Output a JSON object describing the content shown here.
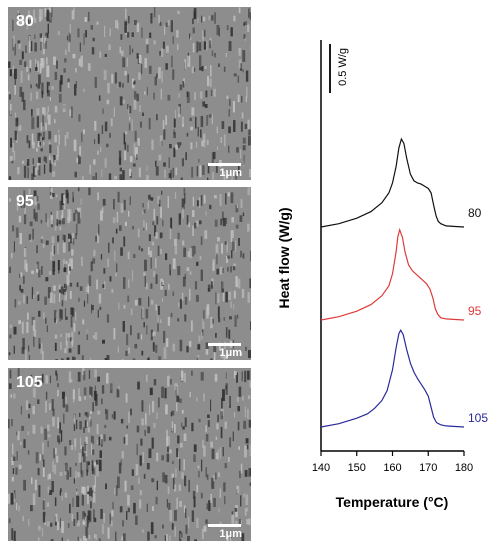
{
  "sem_panels": [
    {
      "label": "80",
      "scale": "1μm"
    },
    {
      "label": "95",
      "scale": "1μm"
    },
    {
      "label": "105",
      "scale": "1μm"
    }
  ],
  "chart_data": {
    "type": "line",
    "xlabel": "Temperature (°C)",
    "ylabel": "Heat flow (W/g)",
    "xlim": [
      140,
      180
    ],
    "xticks": [
      140,
      150,
      160,
      170,
      180
    ],
    "scale_bar_label": "0.5 W/g",
    "grid": false,
    "series": [
      {
        "name": "80",
        "color": "#111111",
        "x": [
          140,
          145,
          150,
          154,
          157,
          159,
          160,
          161,
          161.8,
          162.5,
          163.2,
          164,
          165,
          166,
          167,
          168,
          169,
          170,
          170.8,
          171.5,
          172.2,
          172.8,
          173.5,
          175,
          177,
          180
        ],
        "y": [
          0.0,
          0.03,
          0.08,
          0.14,
          0.22,
          0.31,
          0.4,
          0.55,
          0.72,
          0.8,
          0.76,
          0.62,
          0.48,
          0.42,
          0.4,
          0.39,
          0.37,
          0.35,
          0.31,
          0.2,
          0.1,
          0.05,
          0.03,
          0.01,
          0.005,
          0.0
        ]
      },
      {
        "name": "95",
        "color": "#e03a3a",
        "x": [
          140,
          145,
          150,
          154,
          157,
          159,
          160,
          161,
          161.5,
          162,
          162.8,
          163.5,
          164.5,
          165.5,
          166.5,
          167.5,
          168.5,
          169.5,
          170.5,
          171.3,
          172,
          172.7,
          173.5,
          175,
          177,
          180
        ],
        "y": [
          0.0,
          0.03,
          0.08,
          0.14,
          0.22,
          0.31,
          0.42,
          0.62,
          0.76,
          0.82,
          0.75,
          0.62,
          0.5,
          0.45,
          0.42,
          0.39,
          0.36,
          0.33,
          0.28,
          0.2,
          0.1,
          0.05,
          0.02,
          0.01,
          0.005,
          0.0
        ]
      },
      {
        "name": "105",
        "color": "#2a2a9a",
        "x": [
          140,
          145,
          150,
          153,
          155,
          157,
          158.5,
          160,
          161,
          161.8,
          162.3,
          163,
          164,
          165,
          166,
          167,
          168,
          169,
          170,
          170.8,
          171.5,
          172.3,
          173.5,
          175,
          177,
          180
        ],
        "y": [
          0.0,
          0.03,
          0.08,
          0.12,
          0.17,
          0.24,
          0.33,
          0.52,
          0.72,
          0.85,
          0.88,
          0.84,
          0.7,
          0.58,
          0.5,
          0.44,
          0.39,
          0.34,
          0.28,
          0.18,
          0.09,
          0.04,
          0.02,
          0.01,
          0.005,
          0.0
        ]
      }
    ]
  }
}
